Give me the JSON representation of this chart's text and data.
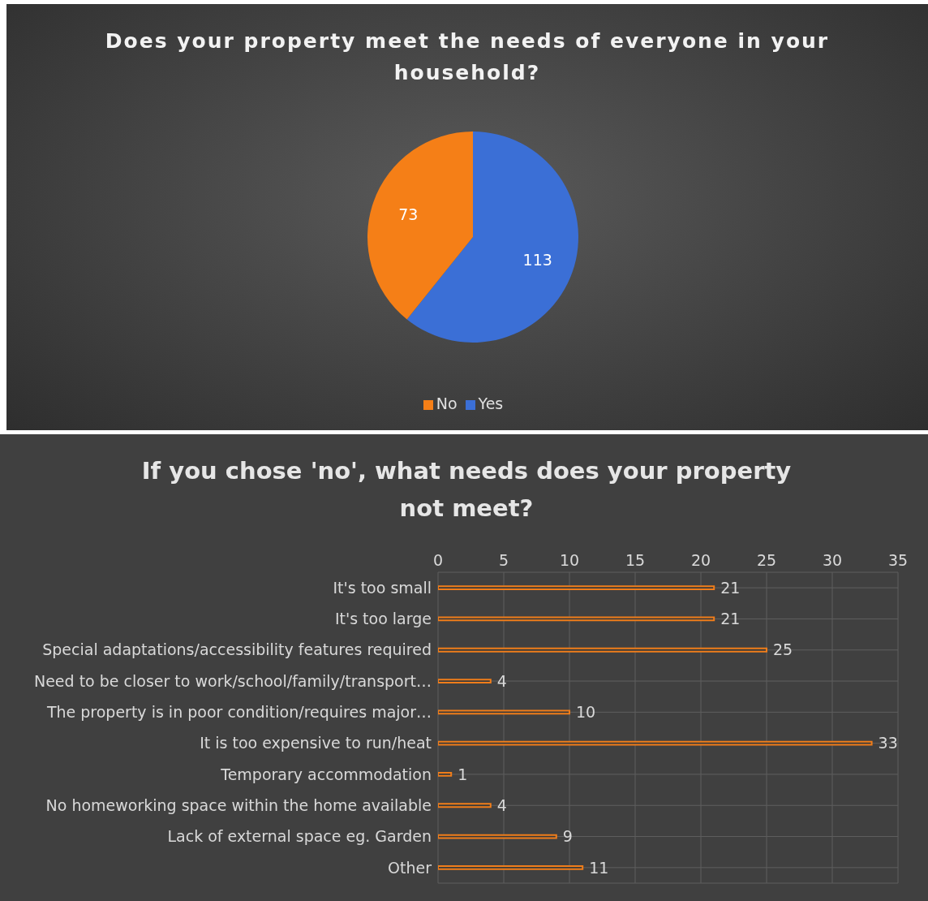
{
  "chart_data": [
    {
      "type": "pie",
      "title": "Does your property meet the needs of everyone in your household?",
      "categories": [
        "Yes",
        "No"
      ],
      "values": [
        113,
        73
      ],
      "colors": [
        "#3b6fd6",
        "#f57f17"
      ],
      "data_labels": true,
      "legend": "bottom"
    },
    {
      "type": "bar",
      "orientation": "horizontal",
      "title": "If you chose 'no', what needs does your property not meet?",
      "categories": [
        "It's too small",
        "It's too large",
        "Special adaptations/accessibility features required",
        "Need to be closer to work/school/family/transport…",
        "The property is in poor condition/requires major…",
        "It is too expensive to run/heat",
        "Temporary accommodation",
        "No homeworking space within the home available",
        "Lack of external space eg. Garden",
        "Other"
      ],
      "values": [
        21,
        21,
        25,
        4,
        10,
        33,
        1,
        4,
        9,
        11
      ],
      "color": "#f07d1a",
      "xlim": [
        0,
        35
      ],
      "xticks": [
        0,
        5,
        10,
        15,
        20,
        25,
        30,
        35
      ],
      "grid": true,
      "data_labels": true
    }
  ]
}
